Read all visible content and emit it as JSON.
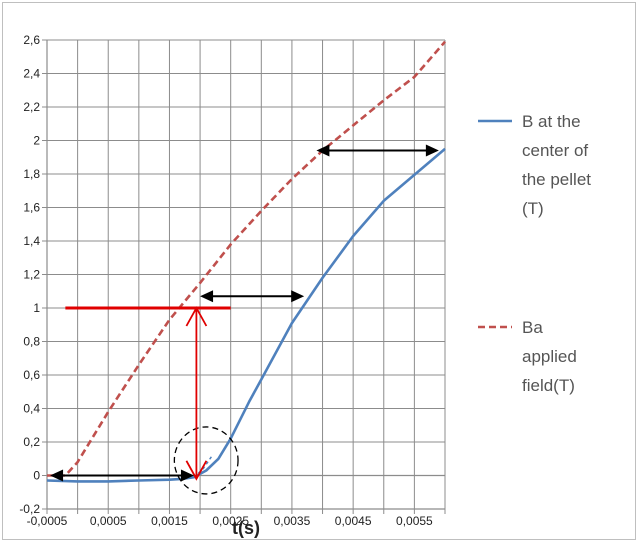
{
  "chart_data": {
    "type": "line",
    "title": "",
    "xlabel": "t(s)",
    "ylabel": "",
    "xlim": [
      -0.0005,
      0.006
    ],
    "ylim": [
      -0.2,
      2.6
    ],
    "grid": true,
    "legend_position": "right",
    "x_tick_labels": [
      "-0,0005",
      "0,0005",
      "0,0015",
      "0,0025",
      "0,0035",
      "0,0045",
      "0,0055"
    ],
    "y_tick_labels": [
      "-0,2",
      "0",
      "0,2",
      "0,4",
      "0,6",
      "0,8",
      "1",
      "1,2",
      "1,4",
      "1,6",
      "1,8",
      "2",
      "2,2",
      "2,4",
      "2,6"
    ],
    "series": [
      {
        "name": "B at the center of the pellet (T)",
        "color": "#4f81bd",
        "style": "solid",
        "x": [
          -0.0005,
          0.0,
          0.0005,
          0.001,
          0.0015,
          0.0017,
          0.0019,
          0.0021,
          0.0023,
          0.0025,
          0.0028,
          0.0031,
          0.0035,
          0.004,
          0.0045,
          0.005,
          0.006
        ],
        "values": [
          -0.03,
          -0.035,
          -0.035,
          -0.03,
          -0.025,
          -0.02,
          -0.01,
          0.03,
          0.1,
          0.22,
          0.44,
          0.64,
          0.91,
          1.18,
          1.43,
          1.64,
          1.95
        ]
      },
      {
        "name": "Ba applied field(T)",
        "color": "#c0504d",
        "style": "dashed",
        "x": [
          -0.0005,
          -0.0002,
          0.0,
          0.0005,
          0.001,
          0.0015,
          0.002,
          0.0025,
          0.003,
          0.0035,
          0.004,
          0.0045,
          0.005,
          0.0055,
          0.006
        ],
        "values": [
          0.0,
          0.0,
          0.08,
          0.38,
          0.66,
          0.93,
          1.15,
          1.38,
          1.58,
          1.77,
          1.94,
          2.09,
          2.24,
          2.38,
          2.59
        ]
      }
    ],
    "legend": [
      {
        "label": "B at the center of the pellet (T)",
        "lines": [
          "B at the",
          "center of",
          "the pellet",
          "(T)"
        ]
      },
      {
        "label": "Ba applied field(T)",
        "lines": [
          "Ba",
          "applied",
          "field(T)"
        ]
      }
    ],
    "annotations": {
      "red_horizontal_line": {
        "x1": -0.0002,
        "x2": 0.0025,
        "y": 1.0,
        "color": "#e00000"
      },
      "red_vertical_arrow": {
        "x": 0.00194,
        "y1": -0.02,
        "y2": 1.0,
        "color": "#e00000"
      },
      "black_double_arrows": [
        {
          "x1": -0.00045,
          "x2": 0.0019,
          "y": 0.0
        },
        {
          "x1": 0.002,
          "x2": 0.0037,
          "y": 1.07
        },
        {
          "x1": 0.0039,
          "x2": 0.0059,
          "y": 1.94
        }
      ],
      "dashed_ellipse": {
        "cx": 0.0021,
        "cy": 0.09,
        "rx": 0.00052,
        "ry": 0.2
      },
      "blue_dotted_extension": {
        "x": [
          0.0019,
          0.00205,
          0.0022
        ],
        "values": [
          -0.01,
          0.04,
          0.12
        ]
      }
    }
  }
}
